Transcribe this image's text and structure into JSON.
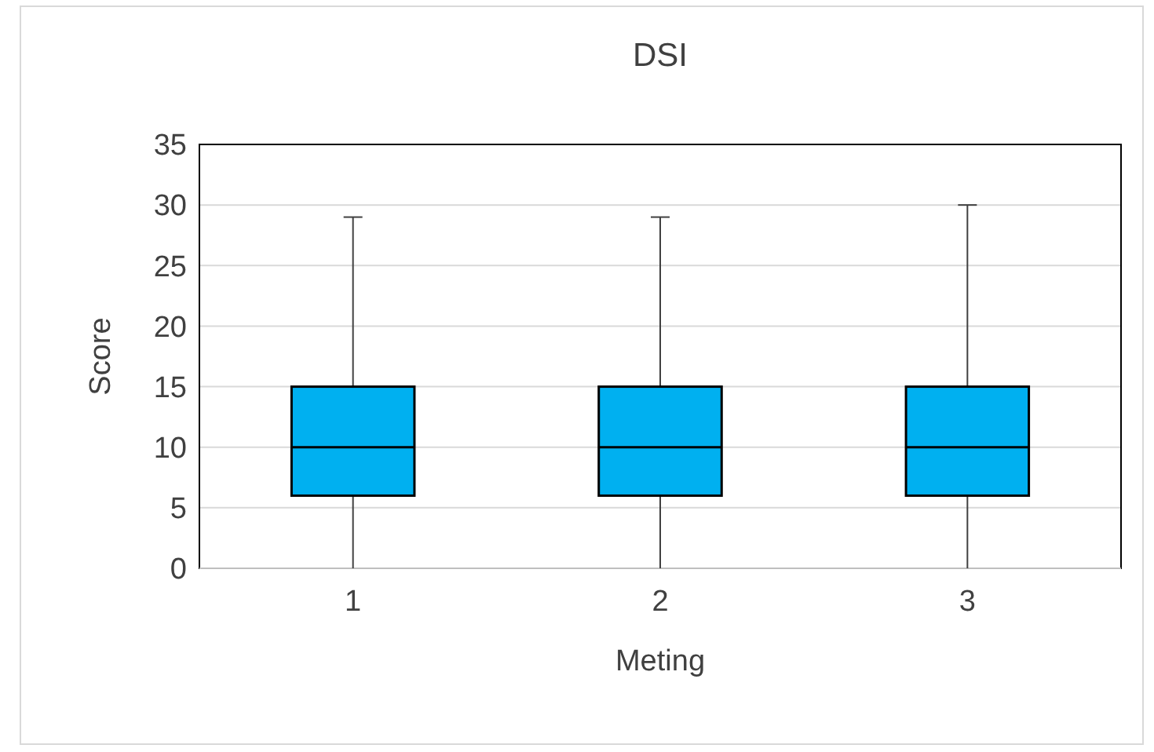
{
  "chart_data": {
    "type": "box",
    "title": "DSI",
    "xlabel": "Meting",
    "ylabel": "Score",
    "categories": [
      "1",
      "2",
      "3"
    ],
    "boxes": [
      {
        "low": 0,
        "q1": 6,
        "median": 10,
        "q3": 15,
        "high": 29
      },
      {
        "low": 0,
        "q1": 6,
        "median": 10,
        "q3": 15,
        "high": 29
      },
      {
        "low": 0,
        "q1": 6,
        "median": 10,
        "q3": 15,
        "high": 30
      }
    ],
    "color": "#00b0f0",
    "ylim": [
      0,
      35
    ],
    "yticks": [
      0,
      5,
      10,
      15,
      20,
      25,
      30,
      35
    ],
    "grid": "y"
  }
}
